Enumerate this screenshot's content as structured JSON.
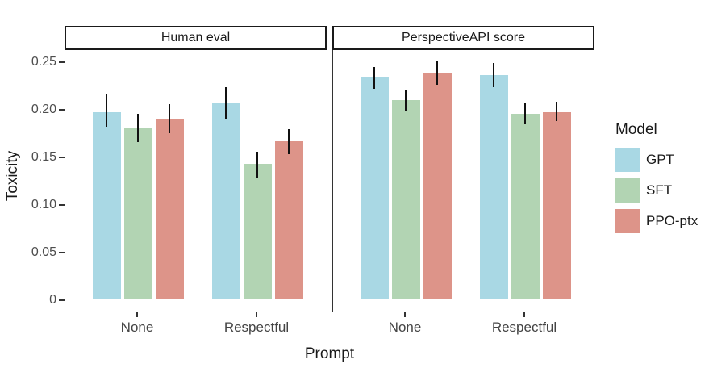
{
  "chart_data": {
    "type": "bar",
    "title": "",
    "xlabel": "Prompt",
    "ylabel": "Toxicity",
    "categories": [
      "None",
      "Respectful"
    ],
    "y_ticks": [
      {
        "label": "0.25",
        "value": 0.25
      },
      {
        "label": "0.20",
        "value": 0.2
      },
      {
        "label": "0.15",
        "value": 0.15
      },
      {
        "label": "0.10",
        "value": 0.1
      },
      {
        "label": "0.05",
        "value": 0.05
      },
      {
        "label": "0",
        "value": 0
      }
    ],
    "ylim": [
      -0.013,
      0.263
    ],
    "grid": false,
    "error_bars": true,
    "legend": {
      "position": "right",
      "title": "Model",
      "entries": [
        {
          "label": "GPT",
          "color": "#A9D8E4"
        },
        {
          "label": "SFT",
          "color": "#B2D4B3"
        },
        {
          "label": "PPO-ptx",
          "color": "#DD9489"
        }
      ]
    },
    "facets": [
      {
        "label": "Human eval",
        "series": [
          {
            "name": "GPT",
            "color": "#A9D8E4",
            "values": [
              0.197,
              0.206
            ],
            "error_low": [
              0.182,
              0.191
            ],
            "error_high": [
              0.216,
              0.224
            ]
          },
          {
            "name": "SFT",
            "color": "#B2D4B3",
            "values": [
              0.18,
              0.142
            ],
            "error_low": [
              0.166,
              0.129
            ],
            "error_high": [
              0.196,
              0.156
            ]
          },
          {
            "name": "PPO-ptx",
            "color": "#DD9489",
            "values": [
              0.19,
              0.166
            ],
            "error_low": [
              0.175,
              0.153
            ],
            "error_high": [
              0.206,
              0.18
            ]
          }
        ]
      },
      {
        "label": "PerspectiveAPI score",
        "series": [
          {
            "name": "GPT",
            "color": "#A9D8E4",
            "values": [
              0.233,
              0.236
            ],
            "error_low": [
              0.222,
              0.224
            ],
            "error_high": [
              0.245,
              0.249
            ]
          },
          {
            "name": "SFT",
            "color": "#B2D4B3",
            "values": [
              0.209,
              0.195
            ],
            "error_low": [
              0.198,
              0.185
            ],
            "error_high": [
              0.221,
              0.207
            ]
          },
          {
            "name": "PPO-ptx",
            "color": "#DD9489",
            "values": [
              0.237,
              0.197
            ],
            "error_low": [
              0.226,
              0.188
            ],
            "error_high": [
              0.251,
              0.208
            ]
          }
        ]
      }
    ]
  }
}
